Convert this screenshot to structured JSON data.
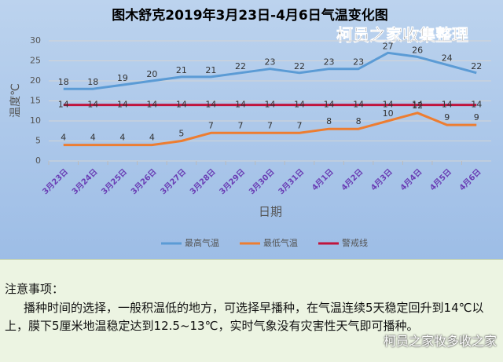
{
  "chart_data": {
    "type": "line",
    "title": "图木舒克2019年3月23日-4月6日气温变化图",
    "watermark": "柯员之家收集整理",
    "y_label": "温度℃",
    "x_label": "日期",
    "categories": [
      "3月23日",
      "3月24日",
      "3月25日",
      "3月26日",
      "3月27日",
      "3月28日",
      "3月29日",
      "3月30日",
      "3月31日",
      "4月1日",
      "4月2日",
      "4月3日",
      "4月4日",
      "4月5日",
      "4月6日"
    ],
    "series": [
      {
        "name": "最高气温",
        "color": "#5b9bd5",
        "values": [
          18,
          18,
          19,
          20,
          21,
          21,
          22,
          23,
          22,
          23,
          23,
          27,
          26,
          24,
          22
        ]
      },
      {
        "name": "最低气温",
        "color": "#ed7d31",
        "values": [
          4,
          4,
          4,
          4,
          5,
          7,
          7,
          7,
          7,
          8,
          8,
          10,
          12,
          9,
          9
        ]
      },
      {
        "name": "警戒线",
        "color": "#c0143c",
        "values": [
          14,
          14,
          14,
          14,
          14,
          14,
          14,
          14,
          14,
          14,
          14,
          14,
          14,
          14,
          14
        ]
      }
    ],
    "ylim": [
      0,
      30
    ],
    "yticks": [
      0,
      5,
      10,
      15,
      20,
      25,
      30
    ],
    "grid": true,
    "legend": "bottom"
  },
  "notes": {
    "heading": "注意事项：",
    "text": "播种时间的选择，一般积温低的地方，可选择早播种，在气温连续5天稳定回升到14℃以上，膜下5厘米地温稳定达到12.5~13℃，实时气象没有灾害性天气即可播种。",
    "watermark": "柯员之家牧多收之家"
  }
}
